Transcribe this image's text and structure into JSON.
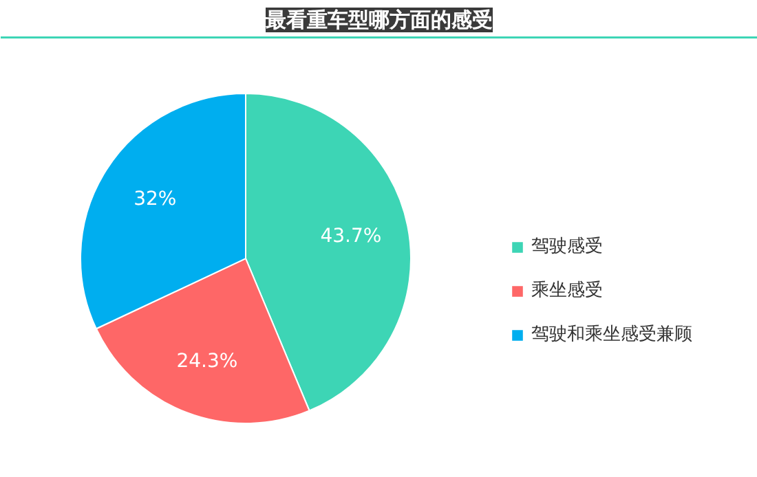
{
  "chart_data": {
    "type": "pie",
    "title": "最看重车型哪方面的感受",
    "categories": [
      "驾驶感受",
      "乘坐感受",
      "驾驶和乘坐感受兼顾"
    ],
    "values": [
      43.7,
      24.3,
      32
    ],
    "colors": [
      "#3dd5b5",
      "#fe6767",
      "#00aeef"
    ],
    "value_labels": [
      "43.7%",
      "24.3%",
      "32%"
    ],
    "legend": "right"
  }
}
